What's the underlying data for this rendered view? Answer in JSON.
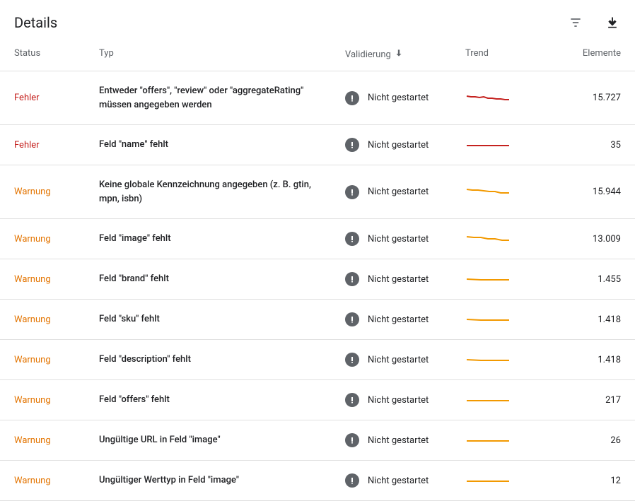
{
  "header": {
    "title": "Details"
  },
  "columns": {
    "status": "Status",
    "type": "Typ",
    "validation": "Validierung",
    "trend": "Trend",
    "elements": "Elemente"
  },
  "status_labels": {
    "error": "Fehler",
    "warning": "Warnung"
  },
  "validation_label": "Nicht gestartet",
  "colors": {
    "error_text": "#c5221f",
    "warning_text": "#e37400",
    "trend_error": "#c5221f",
    "trend_warning": "#f29900",
    "icon_bg": "#5f6368",
    "border": "#e0e0e0"
  },
  "rows": [
    {
      "status": "error",
      "status_label": "Fehler",
      "type": "Entweder \"offers\", \"review\" oder \"aggregateRating\" müssen angegeben werden",
      "validation": "Nicht gestartet",
      "elements": "15.727",
      "trend_color": "#c5221f",
      "trend_points": [
        0,
        6,
        6,
        7,
        12,
        7,
        18,
        8,
        24,
        7,
        30,
        9,
        36,
        9,
        42,
        10,
        48,
        10,
        54,
        11,
        60,
        11
      ]
    },
    {
      "status": "error",
      "status_label": "Fehler",
      "type": "Feld \"name\" fehlt",
      "validation": "Nicht gestartet",
      "elements": "35",
      "trend_color": "#c5221f",
      "trend_points": [
        0,
        10,
        60,
        10
      ]
    },
    {
      "status": "warning",
      "status_label": "Warnung",
      "type": "Keine globale Kennzeichnung angegeben (z. B. gtin, mpn, isbn)",
      "validation": "Nicht gestartet",
      "elements": "15.944",
      "trend_color": "#f29900",
      "trend_points": [
        0,
        5,
        8,
        6,
        16,
        6,
        24,
        7,
        32,
        8,
        40,
        8,
        48,
        10,
        56,
        10,
        60,
        10
      ]
    },
    {
      "status": "warning",
      "status_label": "Warnung",
      "type": "Feld \"image\" fehlt",
      "validation": "Nicht gestartet",
      "elements": "13.009",
      "trend_color": "#f29900",
      "trend_points": [
        0,
        6,
        10,
        7,
        20,
        7,
        30,
        9,
        40,
        9,
        50,
        11,
        60,
        11
      ]
    },
    {
      "status": "warning",
      "status_label": "Warnung",
      "type": "Feld \"brand\" fehlt",
      "validation": "Nicht gestartet",
      "elements": "1.455",
      "trend_color": "#f29900",
      "trend_points": [
        0,
        9,
        20,
        10,
        40,
        10,
        60,
        10
      ]
    },
    {
      "status": "warning",
      "status_label": "Warnung",
      "type": "Feld \"sku\" fehlt",
      "validation": "Nicht gestartet",
      "elements": "1.418",
      "trend_color": "#f29900",
      "trend_points": [
        0,
        9,
        20,
        10,
        40,
        10,
        60,
        10
      ]
    },
    {
      "status": "warning",
      "status_label": "Warnung",
      "type": "Feld \"description\" fehlt",
      "validation": "Nicht gestartet",
      "elements": "1.418",
      "trend_color": "#f29900",
      "trend_points": [
        0,
        9,
        20,
        10,
        40,
        10,
        60,
        10
      ]
    },
    {
      "status": "warning",
      "status_label": "Warnung",
      "type": "Feld \"offers\" fehlt",
      "validation": "Nicht gestartet",
      "elements": "217",
      "trend_color": "#f29900",
      "trend_points": [
        0,
        10,
        60,
        10
      ]
    },
    {
      "status": "warning",
      "status_label": "Warnung",
      "type": "Ungültige URL in Feld \"image\"",
      "validation": "Nicht gestartet",
      "elements": "26",
      "trend_color": "#f29900",
      "trend_points": [
        0,
        10,
        60,
        10
      ]
    },
    {
      "status": "warning",
      "status_label": "Warnung",
      "type": "Ungültiger Werttyp in Feld \"image\"",
      "validation": "Nicht gestartet",
      "elements": "12",
      "trend_color": "#f29900",
      "trend_points": [
        0,
        10,
        60,
        10
      ]
    }
  ]
}
